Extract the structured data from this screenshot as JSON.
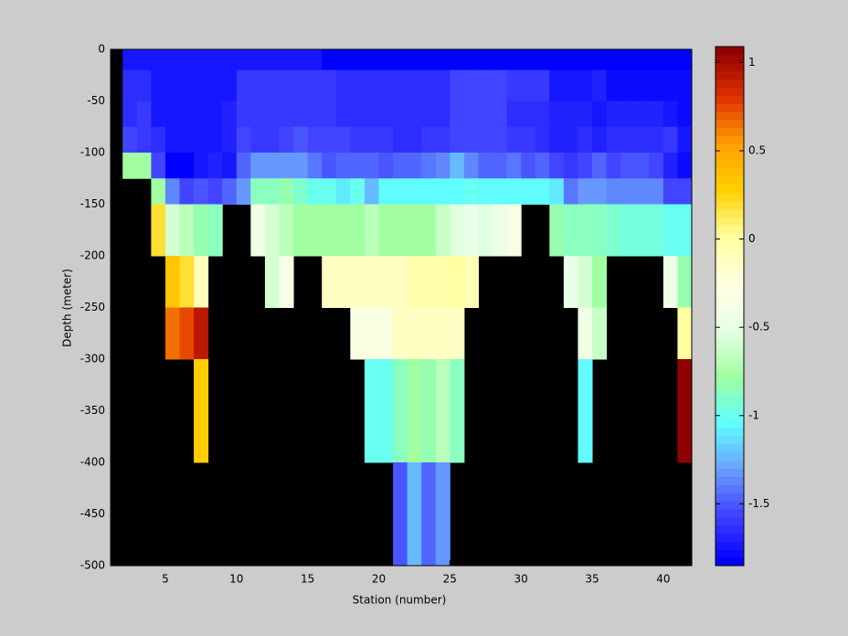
{
  "chart_data": {
    "type": "heatmap",
    "xlabel": "Station (number)",
    "ylabel": "Depth (meter)",
    "x": [
      1,
      2,
      3,
      4,
      5,
      6,
      7,
      8,
      9,
      10,
      11,
      12,
      13,
      14,
      15,
      16,
      17,
      18,
      19,
      20,
      21,
      22,
      23,
      24,
      25,
      26,
      27,
      28,
      29,
      30,
      31,
      32,
      33,
      34,
      35,
      36,
      37,
      38,
      39,
      40,
      41,
      42
    ],
    "y": [
      0,
      -20,
      -50,
      -75,
      -100,
      -125,
      -150,
      -200,
      -250,
      -300,
      -400,
      -500
    ],
    "values": [
      [
        null,
        -1.75,
        -1.75,
        -1.75,
        -1.75,
        -1.75,
        -1.75,
        -1.75,
        -1.75,
        -1.75,
        -1.75,
        -1.75,
        -1.75,
        -1.75,
        -1.75,
        -1.85,
        -1.85,
        -1.85,
        -1.85,
        -1.85,
        -1.85,
        -1.85,
        -1.85,
        -1.85,
        -1.85,
        -1.85,
        -1.85,
        -1.85,
        -1.85,
        -1.85,
        -1.85,
        -1.85,
        -1.85,
        -1.85,
        -1.85,
        -1.85,
        -1.85,
        -1.85,
        -1.85,
        -1.85,
        -1.85
      ],
      [
        null,
        -1.65,
        -1.65,
        -1.75,
        -1.75,
        -1.75,
        -1.75,
        -1.75,
        -1.75,
        -1.6,
        -1.6,
        -1.6,
        -1.6,
        -1.6,
        -1.6,
        -1.6,
        -1.65,
        -1.65,
        -1.65,
        -1.65,
        -1.65,
        -1.65,
        -1.65,
        -1.65,
        -1.55,
        -1.55,
        -1.55,
        -1.55,
        -1.6,
        -1.6,
        -1.6,
        -1.75,
        -1.75,
        -1.75,
        -1.7,
        -1.8,
        -1.8,
        -1.8,
        -1.8,
        -1.8,
        -1.8
      ],
      [
        null,
        -1.65,
        -1.6,
        -1.75,
        -1.75,
        -1.75,
        -1.75,
        -1.75,
        -1.7,
        -1.6,
        -1.6,
        -1.6,
        -1.6,
        -1.6,
        -1.6,
        -1.6,
        -1.65,
        -1.65,
        -1.65,
        -1.65,
        -1.65,
        -1.65,
        -1.65,
        -1.65,
        -1.55,
        -1.55,
        -1.55,
        -1.55,
        -1.65,
        -1.65,
        -1.65,
        -1.7,
        -1.7,
        -1.7,
        -1.75,
        -1.7,
        -1.7,
        -1.7,
        -1.7,
        -1.75,
        -1.8
      ],
      [
        null,
        -1.55,
        -1.6,
        -1.65,
        -1.75,
        -1.75,
        -1.75,
        -1.75,
        -1.7,
        -1.55,
        -1.6,
        -1.6,
        -1.55,
        -1.5,
        -1.55,
        -1.55,
        -1.55,
        -1.6,
        -1.6,
        -1.6,
        -1.65,
        -1.65,
        -1.6,
        -1.6,
        -1.55,
        -1.55,
        -1.55,
        -1.55,
        -1.6,
        -1.6,
        -1.65,
        -1.7,
        -1.7,
        -1.65,
        -1.7,
        -1.65,
        -1.65,
        -1.65,
        -1.65,
        -1.6,
        -1.75
      ],
      [
        null,
        -0.75,
        -0.75,
        -1.55,
        -1.85,
        -1.85,
        -1.75,
        -1.7,
        -1.75,
        -1.45,
        -1.3,
        -1.3,
        -1.3,
        -1.3,
        -1.4,
        -1.5,
        -1.45,
        -1.45,
        -1.45,
        -1.5,
        -1.45,
        -1.45,
        -1.4,
        -1.35,
        -1.25,
        -1.35,
        -1.45,
        -1.45,
        -1.4,
        -1.5,
        -1.45,
        -1.55,
        -1.6,
        -1.55,
        -1.45,
        -1.55,
        -1.5,
        -1.5,
        -1.55,
        -1.7,
        -1.8
      ],
      [
        null,
        null,
        null,
        -0.75,
        -1.35,
        -1.55,
        -1.5,
        -1.55,
        -1.45,
        -1.3,
        -0.85,
        -0.85,
        -0.8,
        -0.9,
        -1.0,
        -1.0,
        -1.1,
        -1.0,
        -1.25,
        -1.05,
        -1.05,
        -1.05,
        -1.05,
        -1.05,
        -1.05,
        -1.0,
        -1.05,
        -1.05,
        -1.05,
        -1.05,
        -1.05,
        -1.1,
        -1.4,
        -1.3,
        -1.3,
        -1.35,
        -1.35,
        -1.35,
        -1.35,
        -1.55,
        -1.55
      ],
      [
        null,
        null,
        null,
        0.2,
        -0.6,
        -0.7,
        -0.8,
        -0.85,
        null,
        null,
        -0.4,
        -0.6,
        -0.7,
        -0.75,
        -0.75,
        -0.75,
        -0.75,
        -0.75,
        -0.7,
        -0.75,
        -0.75,
        -0.75,
        -0.75,
        -0.65,
        -0.55,
        -0.5,
        -0.55,
        -0.45,
        -0.35,
        null,
        null,
        -0.8,
        -0.85,
        -0.85,
        -0.85,
        -0.9,
        -0.95,
        -0.95,
        -0.95,
        -1.0,
        -1.0
      ],
      [
        null,
        null,
        null,
        null,
        0.35,
        0.2,
        -0.1,
        null,
        null,
        null,
        null,
        -0.6,
        -0.35,
        null,
        null,
        -0.15,
        -0.15,
        -0.15,
        -0.15,
        -0.15,
        -0.15,
        -0.05,
        -0.05,
        -0.05,
        0.0,
        -0.1,
        null,
        null,
        null,
        null,
        null,
        null,
        -0.5,
        -0.6,
        -0.75,
        null,
        null,
        null,
        null,
        -0.45,
        -0.8
      ],
      [
        null,
        null,
        null,
        null,
        0.65,
        0.75,
        0.95,
        null,
        null,
        null,
        null,
        null,
        null,
        null,
        null,
        null,
        null,
        -0.3,
        -0.3,
        -0.3,
        -0.15,
        -0.15,
        -0.15,
        -0.15,
        -0.15,
        null,
        null,
        null,
        null,
        null,
        null,
        null,
        null,
        -0.4,
        -0.65,
        null,
        null,
        null,
        null,
        null,
        0.0
      ],
      [
        null,
        null,
        null,
        null,
        null,
        null,
        0.3,
        null,
        null,
        null,
        null,
        null,
        null,
        null,
        null,
        null,
        null,
        null,
        -1.0,
        -1.0,
        -0.85,
        -0.75,
        -0.8,
        -0.7,
        -0.85,
        null,
        null,
        null,
        null,
        null,
        null,
        null,
        null,
        -1.05,
        null,
        null,
        null,
        null,
        null,
        null,
        1.05
      ],
      [
        null,
        null,
        null,
        null,
        null,
        null,
        null,
        null,
        null,
        null,
        null,
        null,
        null,
        null,
        null,
        null,
        null,
        null,
        null,
        null,
        -1.5,
        -1.25,
        -1.45,
        -1.3,
        null,
        null,
        null,
        null,
        null,
        null,
        null,
        null,
        null,
        null,
        null,
        null,
        null,
        null,
        null,
        null,
        null
      ]
    ],
    "xlim": [
      1.15,
      42
    ],
    "ylim": [
      -500,
      0
    ],
    "xticks": [
      5,
      10,
      15,
      20,
      25,
      30,
      35,
      40
    ],
    "yticks": [
      0,
      -50,
      -100,
      -150,
      -200,
      -250,
      -300,
      -350,
      -400,
      -450,
      -500
    ],
    "clim": [
      -1.85,
      1.09
    ],
    "cticks": [
      -1.5,
      -1,
      -0.5,
      0,
      0.5,
      1
    ],
    "colormap": [
      "#0000ff",
      "#4040ff",
      "#6aa0ff",
      "#60ffff",
      "#a0ffa0",
      "#e8ffe8",
      "#ffffe0",
      "#ffffa0",
      "#ffd000",
      "#ffa000",
      "#e03000",
      "#900000"
    ],
    "colorbar_levels": 64,
    "nan_color": "#000000"
  }
}
